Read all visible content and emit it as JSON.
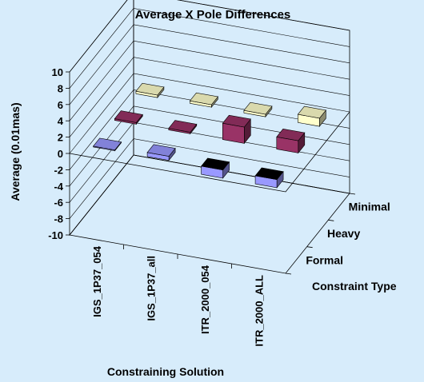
{
  "chart_data": {
    "type": "bar",
    "subtype": "3d-column",
    "title": "Average X Pole Differences",
    "xlabel": "Constraining Solution",
    "ylabel": "Average (0.01mas)",
    "depth_label": "Constraint Type",
    "ylim": [
      -10,
      10
    ],
    "yticks": [
      "10",
      "8",
      "6",
      "4",
      "2",
      "0",
      "-2",
      "-4",
      "-6",
      "-8",
      "-10"
    ],
    "categories": [
      "IGS_1P37_054",
      "IGS_1P37_all",
      "ITR_2000_054",
      "ITR_2000_ALL"
    ],
    "series": [
      {
        "name": "Formal",
        "color": "#9999ff",
        "values": [
          0.1,
          0.5,
          -1.0,
          -1.0
        ]
      },
      {
        "name": "Heavy",
        "color": "#993366",
        "values": [
          0.2,
          0.2,
          2.0,
          1.5
        ]
      },
      {
        "name": "Minimal",
        "color": "#ffffcc",
        "values": [
          0.3,
          0.3,
          0.3,
          1.0
        ]
      }
    ],
    "grid": true
  }
}
